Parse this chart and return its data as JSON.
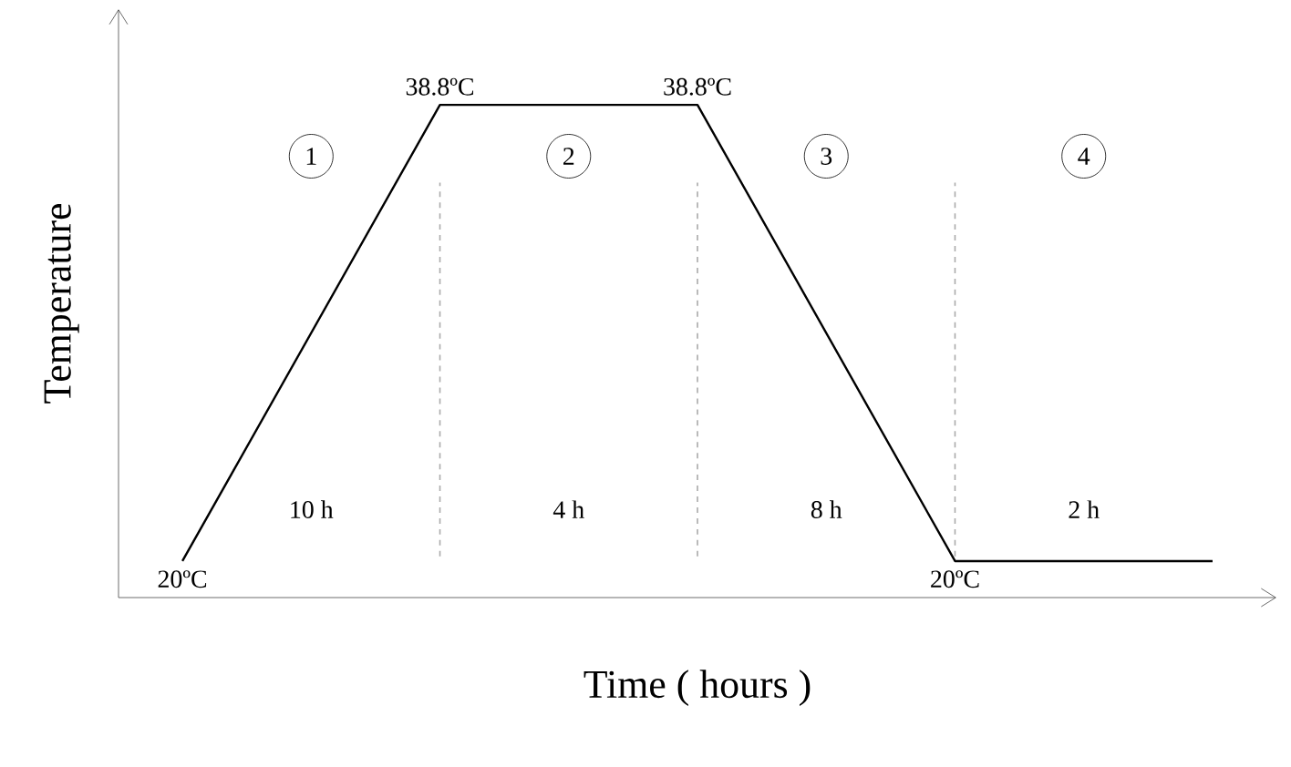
{
  "chart_data": {
    "type": "line",
    "xlabel": "Time ( hours )",
    "ylabel": "Temperature",
    "categories": [
      null,
      null,
      null,
      null,
      null
    ],
    "series": [
      {
        "color": "#000000",
        "values": [
          20,
          38.8,
          38.8,
          20,
          20
        ],
        "value_labels": [
          "20ºC",
          "38.8ºC",
          "38.8ºC",
          "20ºC",
          null
        ]
      }
    ],
    "annotations": [
      "1",
      "2",
      "3",
      "4",
      "10 h",
      "4 h",
      "8 h",
      "2 h"
    ],
    "grid": "x",
    "line_style": "solid"
  }
}
